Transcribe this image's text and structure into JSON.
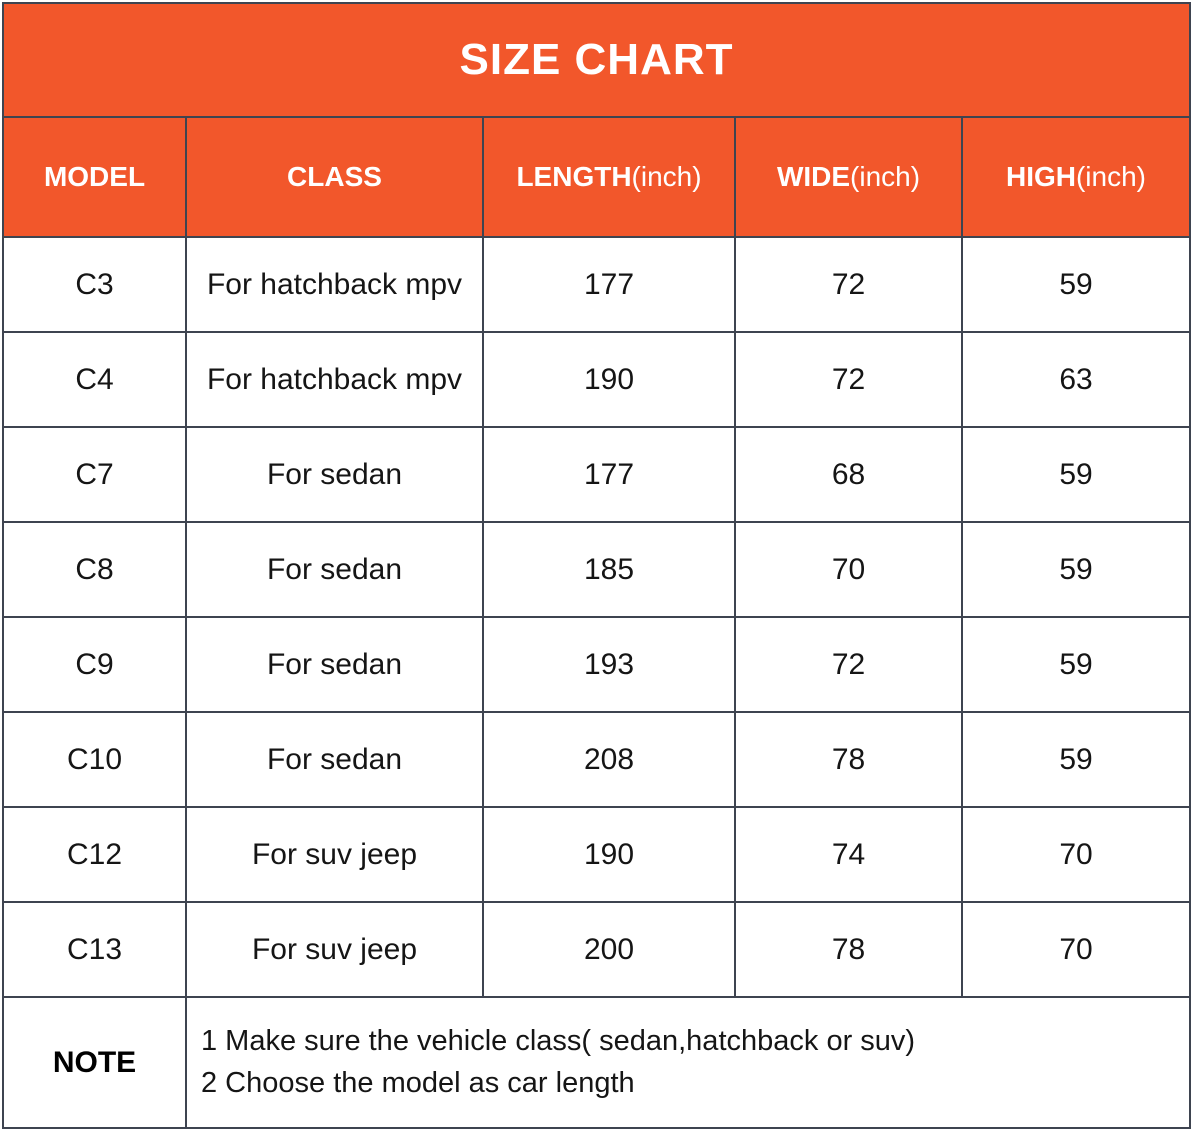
{
  "title": "SIZE CHART",
  "colors": {
    "accent_orange": "#f2572b",
    "border": "#3e4450",
    "header_text": "#ffffff",
    "cell_text": "#151515"
  },
  "columns": [
    {
      "label": "MODEL",
      "unit": ""
    },
    {
      "label": "CLASS",
      "unit": ""
    },
    {
      "label": "LENGTH",
      "unit": "(inch)"
    },
    {
      "label": "WIDE",
      "unit": "(inch)"
    },
    {
      "label": "HIGH",
      "unit": "(inch)"
    }
  ],
  "rows": [
    {
      "model": "C3",
      "class": "For hatchback mpv",
      "length": "177",
      "wide": "72",
      "high": "59"
    },
    {
      "model": "C4",
      "class": "For hatchback mpv",
      "length": "190",
      "wide": "72",
      "high": "63"
    },
    {
      "model": "C7",
      "class": "For sedan",
      "length": "177",
      "wide": "68",
      "high": "59"
    },
    {
      "model": "C8",
      "class": "For sedan",
      "length": "185",
      "wide": "70",
      "high": "59"
    },
    {
      "model": "C9",
      "class": "For sedan",
      "length": "193",
      "wide": "72",
      "high": "59"
    },
    {
      "model": "C10",
      "class": "For sedan",
      "length": "208",
      "wide": "78",
      "high": "59"
    },
    {
      "model": "C12",
      "class": "For suv jeep",
      "length": "190",
      "wide": "74",
      "high": "70"
    },
    {
      "model": "C13",
      "class": "For suv jeep",
      "length": "200",
      "wide": "78",
      "high": "70"
    }
  ],
  "note": {
    "label": "NOTE",
    "lines": [
      "1 Make sure the vehicle class( sedan,hatchback or suv)",
      "2 Choose the model as car length"
    ]
  },
  "chart_data": {
    "type": "table",
    "title": "SIZE CHART",
    "columns": [
      "MODEL",
      "CLASS",
      "LENGTH(inch)",
      "WIDE(inch)",
      "HIGH(inch)"
    ],
    "rows": [
      [
        "C3",
        "For hatchback mpv",
        177,
        72,
        59
      ],
      [
        "C4",
        "For hatchback mpv",
        190,
        72,
        63
      ],
      [
        "C7",
        "For sedan",
        177,
        68,
        59
      ],
      [
        "C8",
        "For sedan",
        185,
        70,
        59
      ],
      [
        "C9",
        "For sedan",
        193,
        72,
        59
      ],
      [
        "C10",
        "For sedan",
        208,
        78,
        59
      ],
      [
        "C12",
        "For suv jeep",
        190,
        74,
        70
      ],
      [
        "C13",
        "For suv jeep",
        200,
        78,
        70
      ]
    ],
    "notes": [
      "1 Make sure the vehicle class( sedan,hatchback or suv)",
      "2 Choose the model as car length"
    ]
  }
}
